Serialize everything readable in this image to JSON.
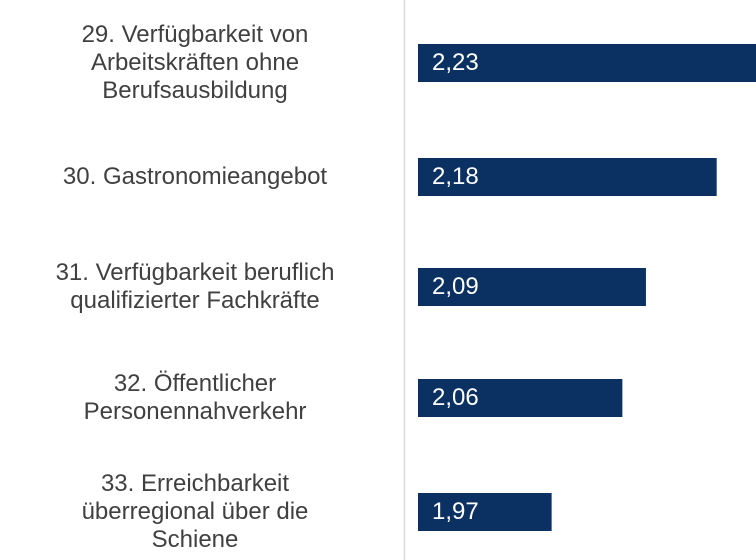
{
  "chart_data": {
    "type": "barh",
    "categories": [
      "29. Verfügbarkeit von\nArbeitskräften ohne\nBerufsausbildung",
      "30. Gastronomieangebot",
      "31. Verfügbarkeit beruflich\nqualifizierter Fachkräfte",
      "32. Öffentlicher\nPersonennahverkehr",
      "33. Erreichbarkeit\nüberregional über die\nSchiene"
    ],
    "values": [
      2.23,
      2.18,
      2.09,
      2.06,
      1.97
    ],
    "value_labels": [
      "2,23",
      "2,18",
      "2,09",
      "2,06",
      "1,97"
    ],
    "color": "#0a3161",
    "xlim": [
      1.8,
      2.23
    ]
  }
}
